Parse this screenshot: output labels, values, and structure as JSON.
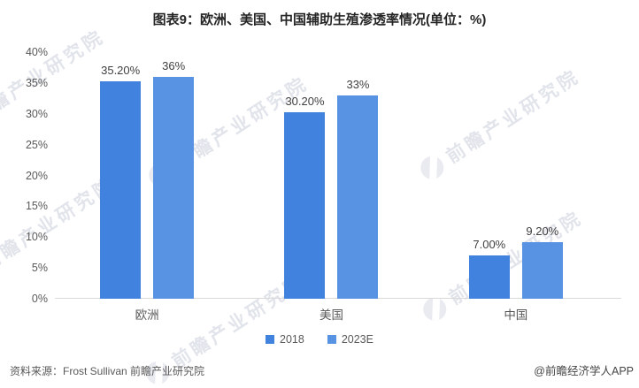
{
  "title": "图表9：欧洲、美国、中国辅助生殖渗透率情况(单位：%)",
  "chart_data": {
    "type": "bar",
    "title": "图表9：欧洲、美国、中国辅助生殖渗透率情况(单位：%)",
    "categories": [
      "欧洲",
      "美国",
      "中国"
    ],
    "series": [
      {
        "name": "2018",
        "color": "#4182DE",
        "values": [
          35.2,
          30.2,
          7.0
        ],
        "labels": [
          "35.20%",
          "30.20%",
          "7.00%"
        ]
      },
      {
        "name": "2023E",
        "color": "#5892E2",
        "values": [
          36.0,
          33.0,
          9.2
        ],
        "labels": [
          "36%",
          "33%",
          "9.20%"
        ]
      }
    ],
    "xlabel": "",
    "ylabel": "",
    "ylim": [
      0,
      40
    ],
    "yticks": [
      0,
      5,
      10,
      15,
      20,
      25,
      30,
      35,
      40
    ],
    "ytick_labels": [
      "0%",
      "5%",
      "10%",
      "15%",
      "20%",
      "25%",
      "30%",
      "35%",
      "40%"
    ],
    "grid": false,
    "legend_position": "bottom",
    "colors": {
      "axis_text": "#595959",
      "bar_label": "#404040",
      "baseline": "#d9d9d9"
    }
  },
  "footer": {
    "source": "资料来源：Frost Sullivan 前瞻产业研究院",
    "credit": "@前瞻经济学人APP"
  },
  "watermark": {
    "text": "前瞻产业研究院"
  }
}
